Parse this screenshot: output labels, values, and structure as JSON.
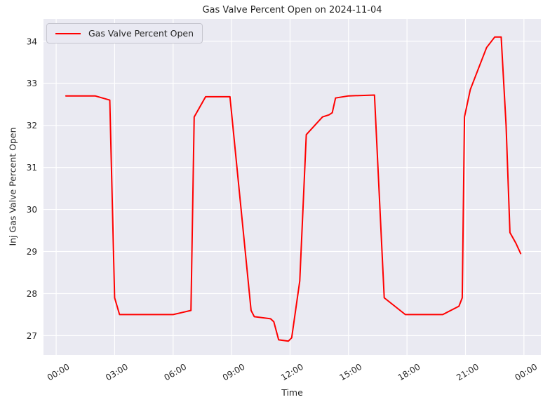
{
  "colors": {
    "figure_bg": "#ffffff",
    "axes_bg": "#eaeaf2",
    "grid": "#ffffff",
    "line": "#ff0000",
    "text": "#262626",
    "legend_bg": "#e9e9f2",
    "legend_border": "#c6c6cf"
  },
  "legend": {
    "label": "Gas Valve Percent Open",
    "position": "upper left"
  },
  "chart_data": {
    "type": "line",
    "title": "Gas Valve Percent Open on 2024-11-04",
    "xlabel": "Time",
    "ylabel": "Inj Gas Valve Percent Open",
    "grid": true,
    "x_ticks": [
      "00:00",
      "03:00",
      "06:00",
      "09:00",
      "12:00",
      "15:00",
      "18:00",
      "21:00",
      "00:00"
    ],
    "x_tick_hours": [
      0,
      3,
      6,
      9,
      12,
      15,
      18,
      21,
      24
    ],
    "y_ticks": [
      27,
      28,
      29,
      30,
      31,
      32,
      33,
      34
    ],
    "xlim_hours": [
      -0.65,
      24.87
    ],
    "ylim": [
      26.54,
      34.53
    ],
    "series": [
      {
        "name": "Gas Valve Percent Open",
        "color": "#ff0000",
        "points": [
          [
            "00:30",
            32.7
          ],
          [
            "02:00",
            32.7
          ],
          [
            "02:45",
            32.6
          ],
          [
            "03:00",
            27.9
          ],
          [
            "03:15",
            27.5
          ],
          [
            "06:00",
            27.5
          ],
          [
            "06:55",
            27.6
          ],
          [
            "07:05",
            32.2
          ],
          [
            "07:40",
            32.68
          ],
          [
            "08:55",
            32.68
          ],
          [
            "10:00",
            27.6
          ],
          [
            "10:10",
            27.45
          ],
          [
            "11:00",
            27.4
          ],
          [
            "11:10",
            27.33
          ],
          [
            "11:25",
            26.9
          ],
          [
            "11:55",
            26.87
          ],
          [
            "12:05",
            26.95
          ],
          [
            "12:30",
            28.3
          ],
          [
            "12:50",
            31.78
          ],
          [
            "13:40",
            32.2
          ],
          [
            "14:00",
            32.25
          ],
          [
            "14:10",
            32.3
          ],
          [
            "14:20",
            32.65
          ],
          [
            "15:00",
            32.7
          ],
          [
            "16:20",
            32.72
          ],
          [
            "16:50",
            27.9
          ],
          [
            "17:55",
            27.5
          ],
          [
            "19:50",
            27.5
          ],
          [
            "20:40",
            27.7
          ],
          [
            "20:50",
            27.9
          ],
          [
            "20:57",
            32.2
          ],
          [
            "21:15",
            32.85
          ],
          [
            "21:40",
            33.35
          ],
          [
            "22:05",
            33.85
          ],
          [
            "22:30",
            34.1
          ],
          [
            "22:50",
            34.1
          ],
          [
            "23:05",
            32.0
          ],
          [
            "23:17",
            29.45
          ],
          [
            "23:35",
            29.2
          ],
          [
            "23:50",
            28.95
          ]
        ]
      }
    ]
  }
}
